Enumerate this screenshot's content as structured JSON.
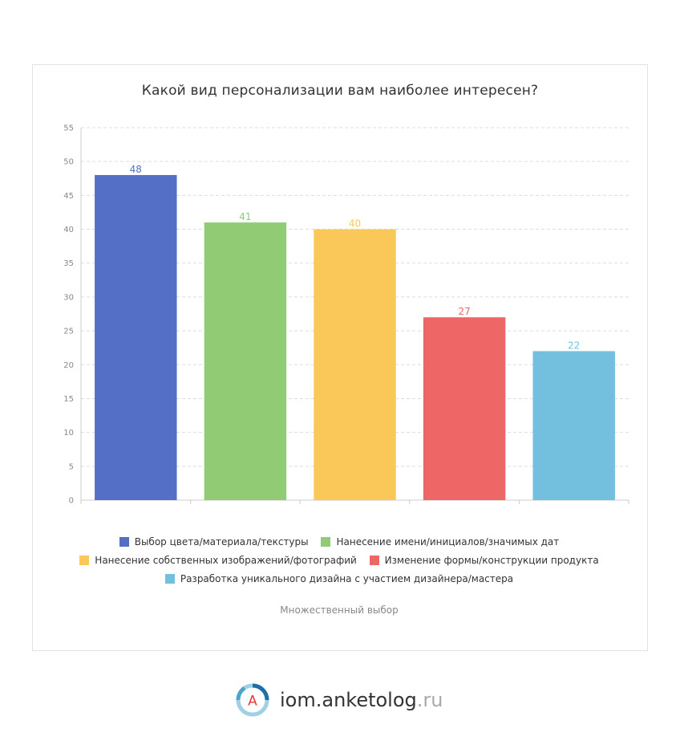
{
  "chart_data": {
    "type": "bar",
    "title": "Какой вид персонализации вам наиболее интересен?",
    "categories": [
      "Выбор цвета/материала/текстуры",
      "Нанесение имени/инициалов/значимых дат",
      "Нанесение собственных изображений/фотографий",
      "Изменение формы/конструкции продукта",
      "Разработка уникального дизайна с участием дизайнера/мастера"
    ],
    "values": [
      48,
      41,
      40,
      27,
      22
    ],
    "value_labels": [
      "48",
      "41",
      "40",
      "27",
      "22"
    ],
    "colors": [
      "#5470c6",
      "#91cc75",
      "#fac858",
      "#ee6666",
      "#73c0de"
    ],
    "ylim": [
      0,
      55
    ],
    "yticks": [
      0,
      5,
      10,
      15,
      20,
      25,
      30,
      35,
      40,
      45,
      50,
      55
    ],
    "ytick_labels": [
      "0",
      "5",
      "10",
      "15",
      "20",
      "25",
      "30",
      "35",
      "40",
      "45",
      "50",
      "55"
    ],
    "xlabel": "",
    "ylabel": "",
    "grid": true,
    "legend_position": "bottom"
  },
  "footnote": "Множественный выбор",
  "brand": {
    "logo_letter": "A",
    "name": "iom.anketolog",
    "suffix": ".ru"
  }
}
